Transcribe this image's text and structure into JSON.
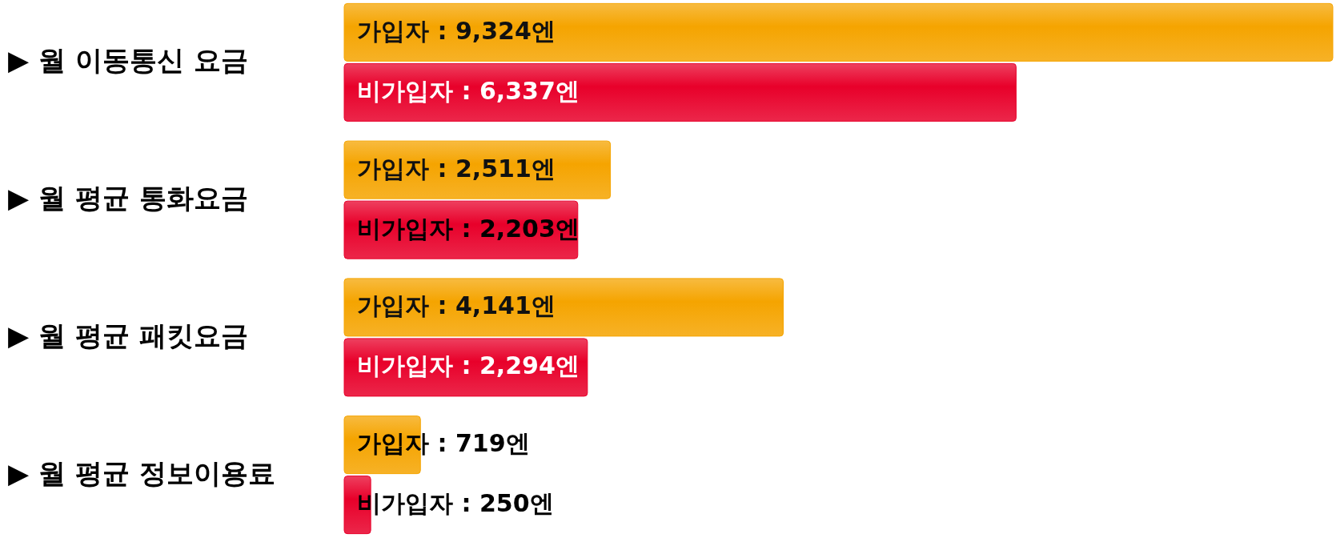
{
  "chart_data": {
    "type": "bar",
    "orientation": "horizontal",
    "categories": [
      "▶ 월 이동통신 요금",
      "▶ 월 평균 통화요금",
      "▶ 월 평균 패킷요금",
      "▶ 월 평균 정보이용료"
    ],
    "series": [
      {
        "color": "#f5a400",
        "values": [
          9324,
          2511,
          4141,
          719
        ],
        "value_labels": [
          "가입자 : 9,324엔",
          "가입자 : 2,511엔",
          "가입자 : 4,141엔",
          "가입자 : 719엔"
        ]
      },
      {
        "color": "#e8002a",
        "values": [
          6337,
          2203,
          2294,
          250
        ],
        "value_labels": [
          "비가입자 : 6,337엔",
          "비가입자 : 2,203엔",
          "비가입자 : 2,294엔",
          "비가입자 : 250엔"
        ]
      }
    ]
  }
}
